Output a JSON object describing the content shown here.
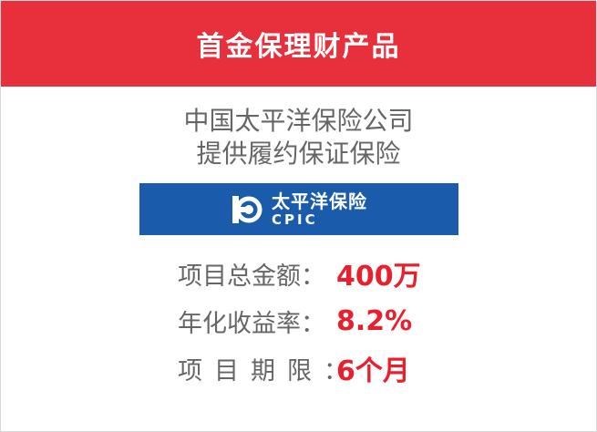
{
  "header": {
    "title": "首金保理财产品"
  },
  "description": {
    "line1": "中国太平洋保险公司",
    "line2": "提供履约保证保险"
  },
  "logo": {
    "icon": "cpic-logo-icon",
    "name_cn": "太平洋保险",
    "name_en": "CPIC"
  },
  "stats": [
    {
      "label": "项目总金额：",
      "value": "400万"
    },
    {
      "label": "年化收益率：",
      "value": "8.2%"
    },
    {
      "label": "项目期限：",
      "value": "6个月"
    }
  ],
  "colors": {
    "header_bg": "#e8303d",
    "value": "#e8202e",
    "banner_bg": "#1a5cab",
    "text": "#666666"
  }
}
